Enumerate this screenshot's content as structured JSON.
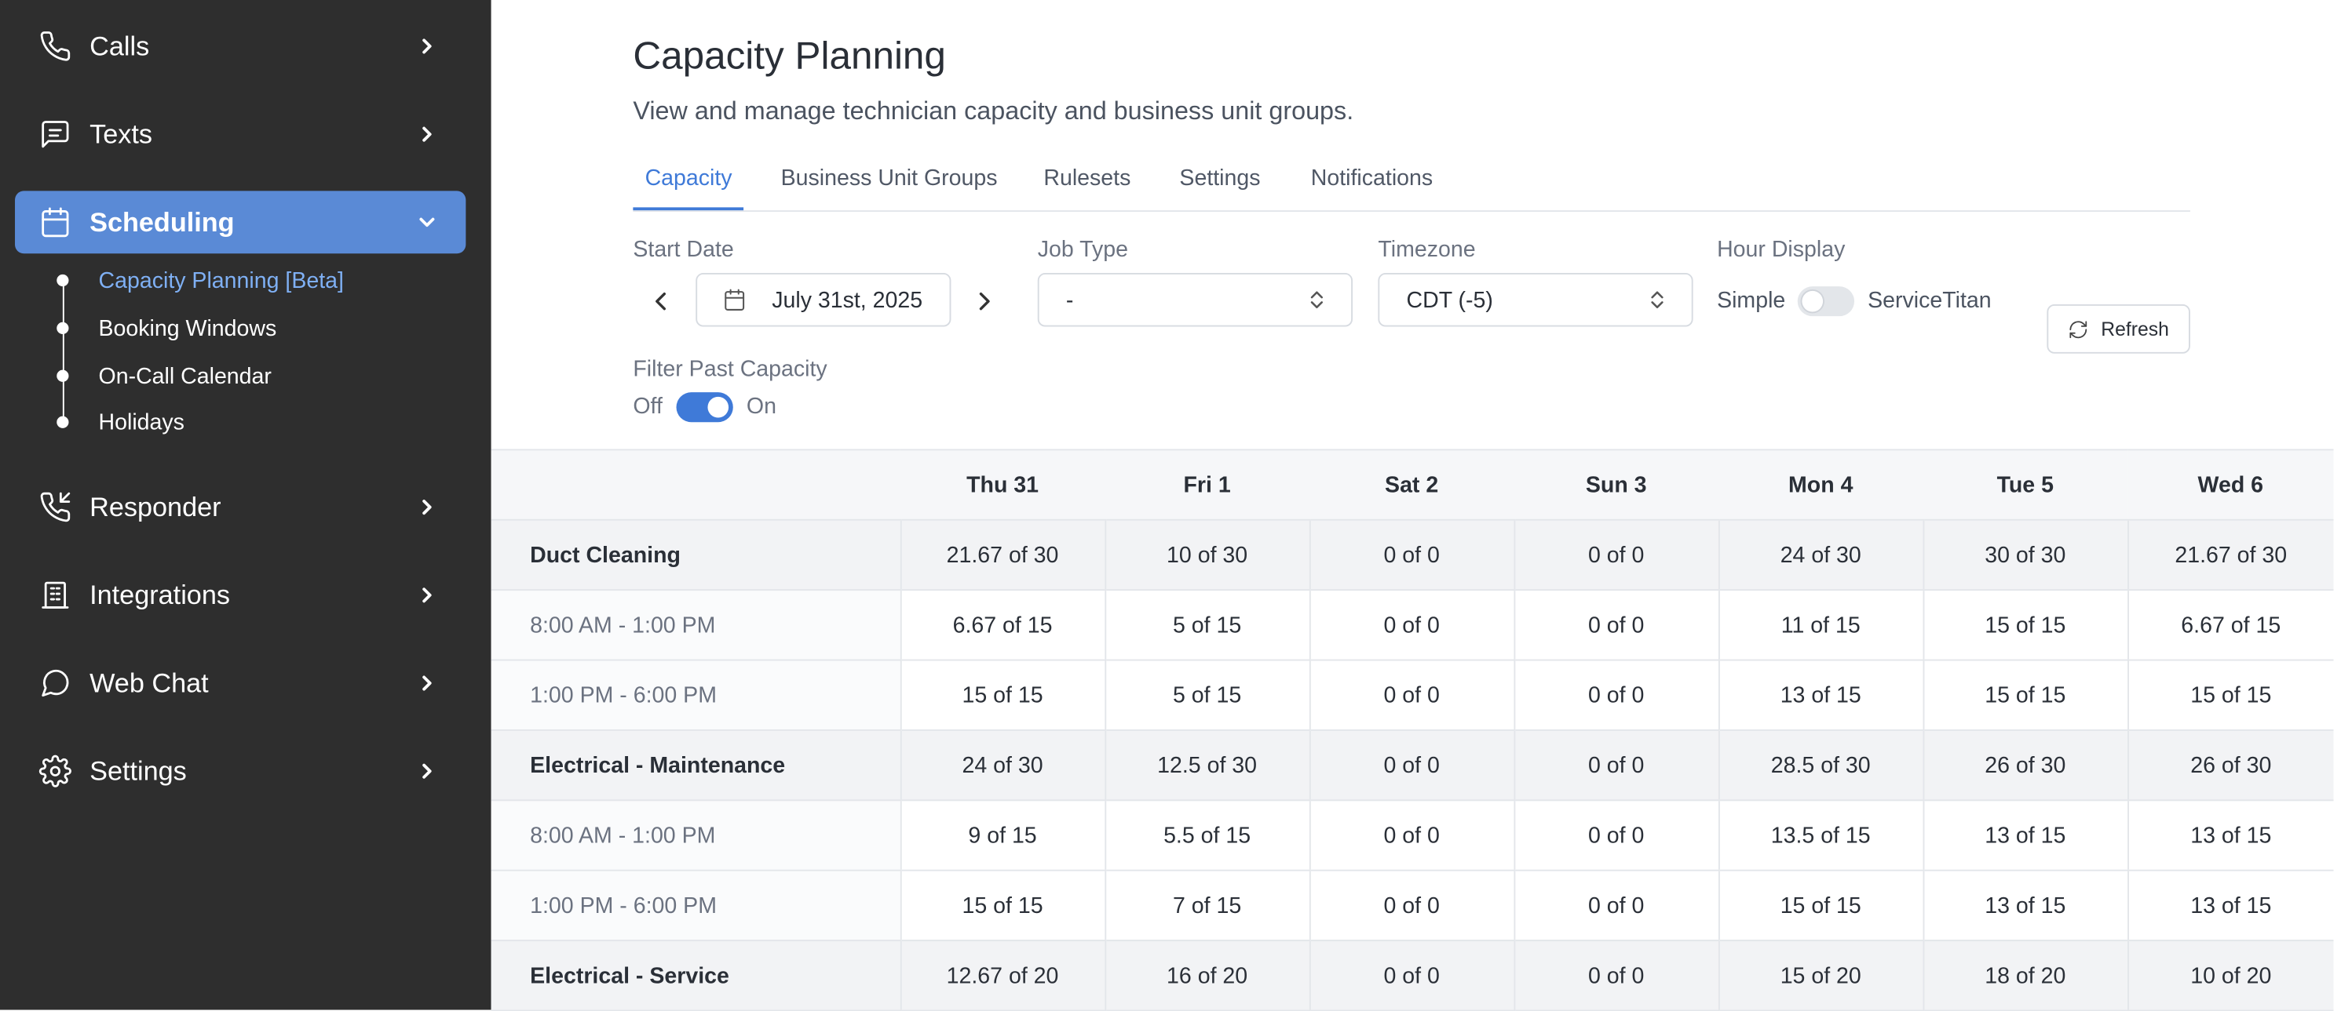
{
  "sidebar": {
    "items": [
      {
        "label": "Calls",
        "icon": "phone-icon"
      },
      {
        "label": "Texts",
        "icon": "message-square-icon"
      },
      {
        "label": "Scheduling",
        "icon": "calendar-icon"
      },
      {
        "label": "Responder",
        "icon": "phone-incoming-icon"
      },
      {
        "label": "Integrations",
        "icon": "building-icon"
      },
      {
        "label": "Web Chat",
        "icon": "chat-bubble-icon"
      },
      {
        "label": "Settings",
        "icon": "gear-icon"
      }
    ],
    "sub_items": [
      {
        "label": "Capacity Planning [Beta]"
      },
      {
        "label": "Booking Windows"
      },
      {
        "label": "On-Call Calendar"
      },
      {
        "label": "Holidays"
      }
    ],
    "active_color": "#5a8ad6",
    "background": "#2e2e2e"
  },
  "page": {
    "title": "Capacity Planning",
    "subtitle": "View and manage technician capacity and business unit groups."
  },
  "tabs": [
    {
      "label": "Capacity"
    },
    {
      "label": "Business Unit Groups"
    },
    {
      "label": "Rulesets"
    },
    {
      "label": "Settings"
    },
    {
      "label": "Notifications"
    }
  ],
  "filters": {
    "start_date_label": "Start Date",
    "start_date_value": "July 31st, 2025",
    "job_type_label": "Job Type",
    "job_type_value": "-",
    "timezone_label": "Timezone",
    "timezone_value": "CDT (-5)",
    "hour_display_label": "Hour Display",
    "hour_display_left": "Simple",
    "hour_display_right": "ServiceTitan",
    "hour_display_on": false,
    "filter_past_label": "Filter Past Capacity",
    "filter_past_off": "Off",
    "filter_past_on": "On",
    "filter_past_enabled": true,
    "refresh_label": "Refresh"
  },
  "table": {
    "columns": [
      "",
      "Thu 31",
      "Fri 1",
      "Sat 2",
      "Sun 3",
      "Mon 4",
      "Tue 5",
      "Wed 6"
    ],
    "rows": [
      {
        "type": "group",
        "label": "Duct Cleaning",
        "values": [
          "21.67 of 30",
          "10 of 30",
          "0 of 0",
          "0 of 0",
          "24 of 30",
          "30 of 30",
          "21.67 of 30"
        ]
      },
      {
        "type": "slot",
        "label": "8:00 AM - 1:00 PM",
        "values": [
          "6.67 of 15",
          "5 of 15",
          "0 of 0",
          "0 of 0",
          "11 of 15",
          "15 of 15",
          "6.67 of 15"
        ]
      },
      {
        "type": "slot",
        "label": "1:00 PM - 6:00 PM",
        "values": [
          "15 of 15",
          "5 of 15",
          "0 of 0",
          "0 of 0",
          "13 of 15",
          "15 of 15",
          "15 of 15"
        ]
      },
      {
        "type": "group",
        "label": "Electrical - Maintenance",
        "values": [
          "24 of 30",
          "12.5 of 30",
          "0 of 0",
          "0 of 0",
          "28.5 of 30",
          "26 of 30",
          "26 of 30"
        ]
      },
      {
        "type": "slot",
        "label": "8:00 AM - 1:00 PM",
        "values": [
          "9 of 15",
          "5.5 of 15",
          "0 of 0",
          "0 of 0",
          "13.5 of 15",
          "13 of 15",
          "13 of 15"
        ]
      },
      {
        "type": "slot",
        "label": "1:00 PM - 6:00 PM",
        "values": [
          "15 of 15",
          "7 of 15",
          "0 of 0",
          "0 of 0",
          "15 of 15",
          "13 of 15",
          "13 of 15"
        ]
      },
      {
        "type": "group",
        "label": "Electrical - Service",
        "values": [
          "12.67 of 20",
          "16 of 20",
          "0 of 0",
          "0 of 0",
          "15 of 20",
          "18 of 20",
          "10 of 20"
        ]
      }
    ]
  }
}
